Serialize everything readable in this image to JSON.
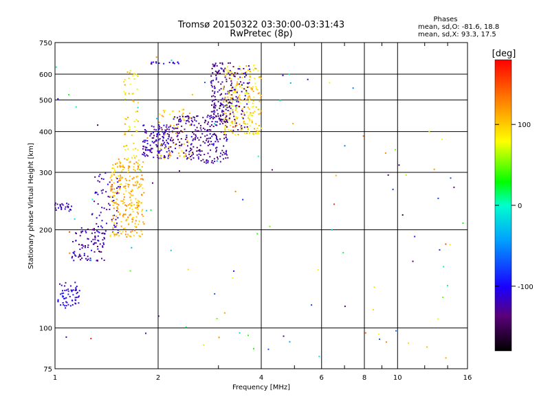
{
  "chart_data": {
    "type": "scatter",
    "title": "Tromsø 20150322 03:30:00-03:31:43",
    "subtitle": "RwPretec (8p)",
    "xlabel": "Frequency [MHz]",
    "ylabel": "Stationary phase Virtual Height [km]",
    "x_scale": "log",
    "y_scale": "log",
    "xlim": [
      1,
      16
    ],
    "ylim": [
      75,
      750
    ],
    "x_ticks": [
      1,
      2,
      4,
      6,
      8,
      10,
      16
    ],
    "x_tick_labels": [
      "1",
      "2",
      "4",
      "6",
      "8",
      "10",
      "16"
    ],
    "y_ticks": [
      75,
      100,
      200,
      300,
      400,
      500,
      600,
      750
    ],
    "y_tick_labels": [
      "75",
      "100",
      "200",
      "300",
      "400",
      "500",
      "600",
      "750"
    ],
    "grid": true,
    "phase_summary": {
      "heading": "Phases",
      "line_o": "mean, sd,O: -81.6, 18.8",
      "line_x": "mean, sd,X:  93.3, 17.5"
    },
    "colorbar": {
      "label": "[deg]",
      "range": [
        -180,
        180
      ],
      "ticks": [
        100,
        0,
        -100
      ],
      "tick_labels": [
        "100",
        "0",
        "-100"
      ]
    },
    "clusters": [
      {
        "x_range": [
          1.02,
          1.18
        ],
        "y_range": [
          115,
          138
        ],
        "phase": -110,
        "count": 60
      },
      {
        "x_range": [
          1.12,
          1.4
        ],
        "y_range": [
          160,
          205
        ],
        "phase": -125,
        "count": 90
      },
      {
        "x_range": [
          1.0,
          1.12
        ],
        "y_range": [
          228,
          242
        ],
        "phase": -115,
        "count": 25
      },
      {
        "x_range": [
          1.28,
          1.55
        ],
        "y_range": [
          195,
          300
        ],
        "phase": -120,
        "count": 70
      },
      {
        "x_range": [
          1.45,
          1.82
        ],
        "y_range": [
          190,
          330
        ],
        "phase": 110,
        "count": 260
      },
      {
        "x_range": [
          1.58,
          1.75
        ],
        "y_range": [
          330,
          620
        ],
        "phase": 95,
        "count": 60
      },
      {
        "x_range": [
          1.8,
          2.2
        ],
        "y_range": [
          330,
          420
        ],
        "phase": -120,
        "count": 140
      },
      {
        "x_range": [
          2.0,
          2.5
        ],
        "y_range": [
          330,
          470
        ],
        "phase": 100,
        "count": 60
      },
      {
        "x_range": [
          2.2,
          3.2
        ],
        "y_range": [
          320,
          450
        ],
        "phase": -130,
        "count": 250
      },
      {
        "x_range": [
          2.85,
          3.3
        ],
        "y_range": [
          430,
          650
        ],
        "phase": -135,
        "count": 150
      },
      {
        "x_range": [
          3.1,
          4.0
        ],
        "y_range": [
          390,
          640
        ],
        "phase": 95,
        "count": 220
      },
      {
        "x_range": [
          3.3,
          3.7
        ],
        "y_range": [
          400,
          640
        ],
        "phase": -120,
        "count": 60
      },
      {
        "x_range": [
          1.9,
          2.35
        ],
        "y_range": [
          645,
          655
        ],
        "phase": -115,
        "count": 15
      },
      {
        "x_range": [
          1.0,
          16.0
        ],
        "y_range": [
          80,
          700
        ],
        "phase": 0,
        "count": 110
      }
    ]
  }
}
